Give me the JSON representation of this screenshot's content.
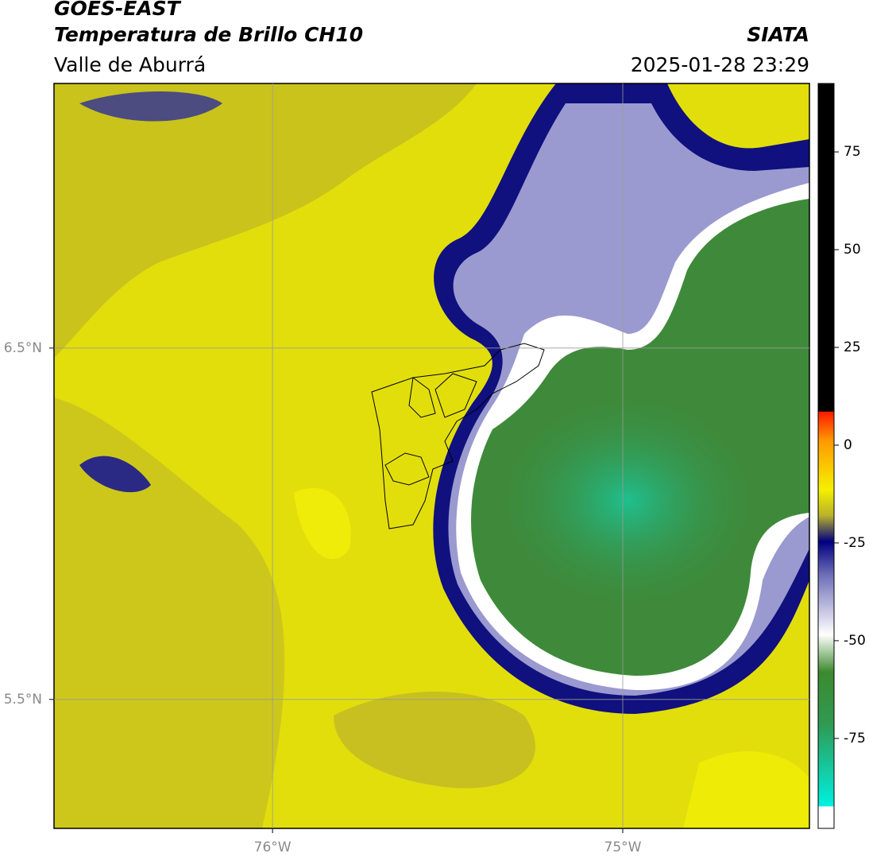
{
  "header": {
    "satellite": "GOES-EAST",
    "product": "Temperatura de Brillo CH10",
    "region": "Valle de Aburrá",
    "org": "SIATA",
    "datetime": "2025-01-28 23:29"
  },
  "map": {
    "xlim": [
      -76.624,
      -74.467
    ],
    "ylim": [
      5.133,
      7.253
    ],
    "xticks": [
      {
        "value": -76,
        "label": "76°W"
      },
      {
        "value": -75,
        "label": "75°W"
      }
    ],
    "yticks": [
      {
        "value": 6.5,
        "label": "6.5°N"
      },
      {
        "value": 5.5,
        "label": "5.5°N"
      }
    ],
    "grid": true
  },
  "colorbar": {
    "lim": [
      -98,
      92.5
    ],
    "ticks": [
      75,
      50,
      25,
      0,
      -25,
      -50,
      -75
    ]
  }
}
